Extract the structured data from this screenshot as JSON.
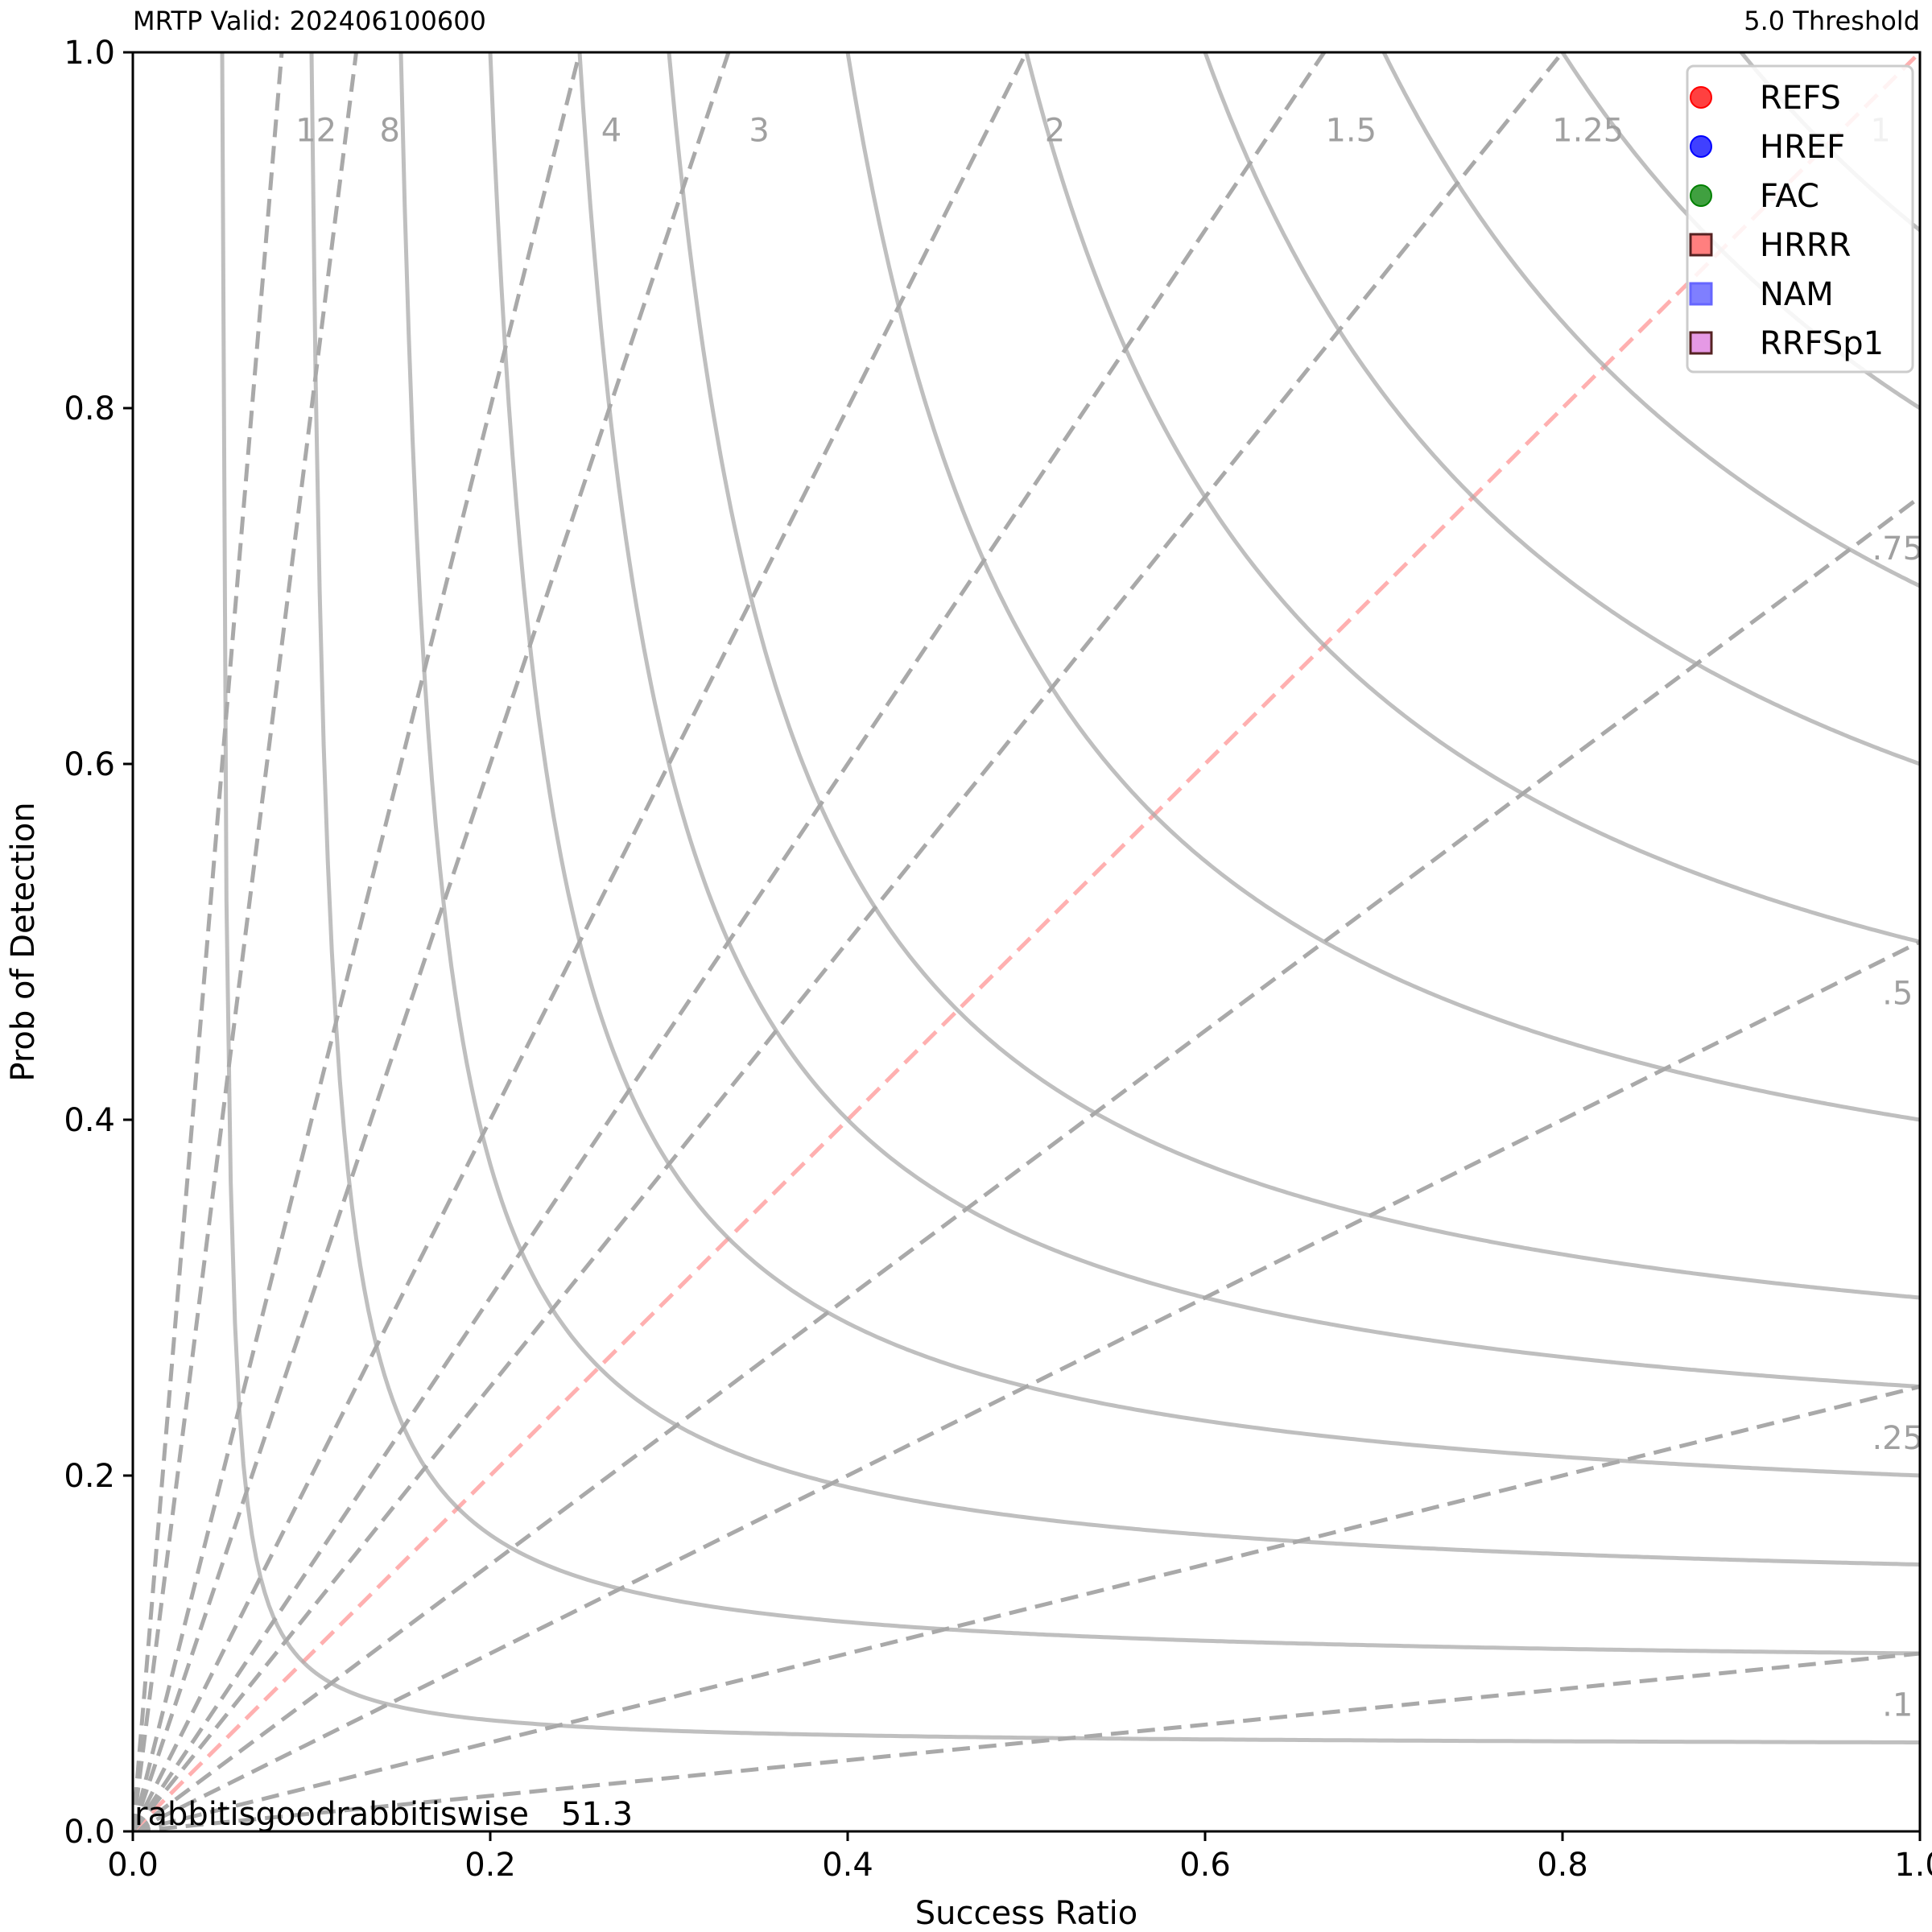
{
  "header": {
    "left_title": "MRTP Valid: 202406100600",
    "right_title": "5.0 Threshold"
  },
  "annotation": "rabbitisgoodrabbitiswise__51.3",
  "chart_data": {
    "type": "scatter",
    "subtype": "performance_diagram",
    "xlabel": "Success Ratio",
    "ylabel": "Prob of Detection",
    "xlim": [
      0.0,
      1.0
    ],
    "ylim": [
      0.0,
      1.0
    ],
    "x_ticks": [
      0.0,
      0.2,
      0.4,
      0.6,
      0.8,
      1.0
    ],
    "y_ticks": [
      0.0,
      0.2,
      0.4,
      0.6,
      0.8,
      1.0
    ],
    "tick_labels": [
      "0.0",
      "0.2",
      "0.4",
      "0.6",
      "0.8",
      "1.0"
    ],
    "grid": false,
    "legend_position": "top-right",
    "csi_contours": [
      0.05,
      0.1,
      0.15,
      0.2,
      0.25,
      0.3,
      0.4,
      0.5,
      0.6,
      0.7,
      0.8,
      0.9
    ],
    "bias_lines": [
      {
        "value": 0.1,
        "label": ".1"
      },
      {
        "value": 0.25,
        "label": ".25"
      },
      {
        "value": 0.5,
        "label": ".5"
      },
      {
        "value": 0.75,
        "label": ".75"
      },
      {
        "value": 1,
        "label": "1"
      },
      {
        "value": 1.25,
        "label": "1.25"
      },
      {
        "value": 1.5,
        "label": "1.5"
      },
      {
        "value": 2,
        "label": "2"
      },
      {
        "value": 3,
        "label": "3"
      },
      {
        "value": 4,
        "label": "4"
      },
      {
        "value": 8,
        "label": "8"
      },
      {
        "value": 12,
        "label": "12"
      }
    ],
    "series": [
      {
        "name": "REFS",
        "marker": "circle",
        "color": "#ff0000",
        "points": []
      },
      {
        "name": "HREF",
        "marker": "circle",
        "color": "#0000ff",
        "points": []
      },
      {
        "name": "FAC",
        "marker": "circle",
        "color": "#008000",
        "points": []
      },
      {
        "name": "HRRR",
        "marker": "square",
        "color": "#ff0000",
        "points": []
      },
      {
        "name": "NAM",
        "marker": "square",
        "color": "#0000ff",
        "points": []
      },
      {
        "name": "RRFSp1",
        "marker": "square",
        "color": "#cc33cc",
        "points": []
      }
    ]
  },
  "colors": {
    "contour": "#a9a9a9",
    "bias_line": "#a9a9a9",
    "bias_one_line": "#ffb0b0",
    "bias_one_label": "#ffaaaa",
    "label": "#a0a0a0"
  }
}
